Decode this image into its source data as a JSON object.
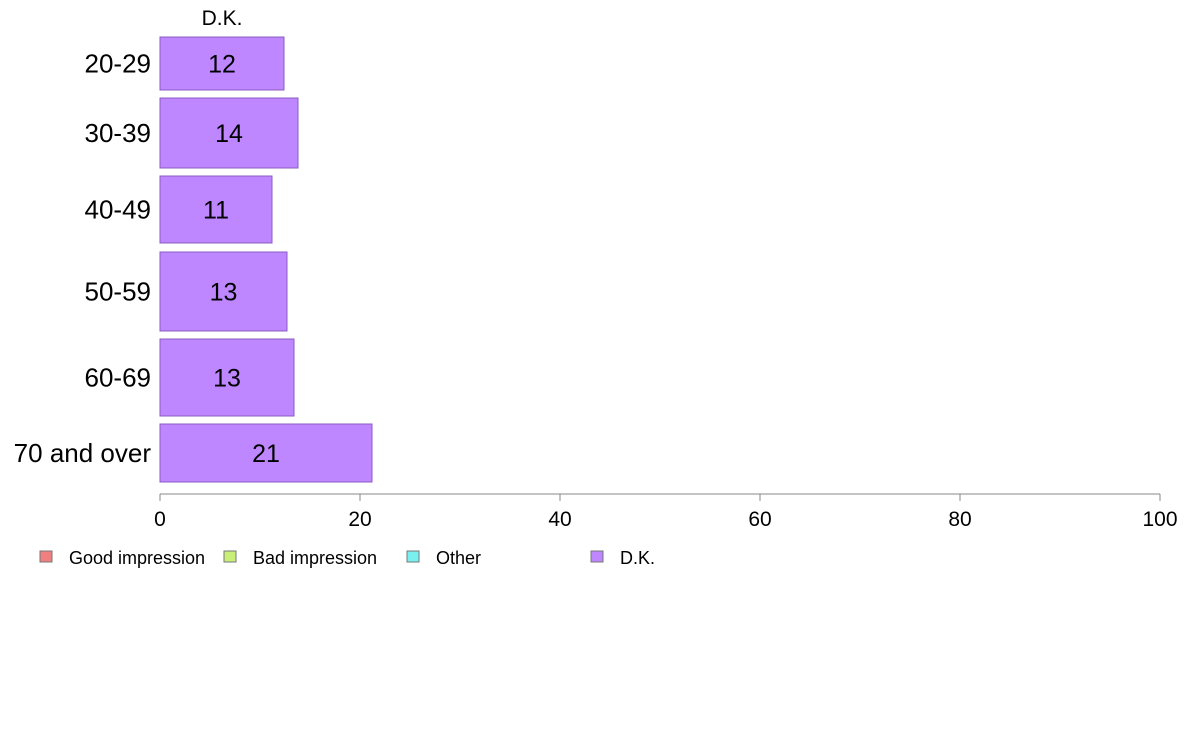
{
  "chart_data": {
    "type": "bar",
    "orientation": "horizontal",
    "stacked": true,
    "categories": [
      "20-29",
      "30-39",
      "40-49",
      "50-59",
      "60-69",
      "70 and over"
    ],
    "series": [
      {
        "name": "D.K.",
        "values": [
          12,
          14,
          11,
          13,
          13,
          21
        ]
      }
    ],
    "data_labels": [
      "12",
      "14",
      "11",
      "13",
      "13",
      "21"
    ],
    "exact_values": [
      12.4,
      13.8,
      11.2,
      12.7,
      13.4,
      21.2
    ],
    "top_label": "D.K.",
    "xlim": [
      0,
      100
    ],
    "xticks": [
      0,
      20,
      40,
      60,
      80,
      100
    ],
    "xtick_labels": [
      "0",
      "20",
      "40",
      "60",
      "80",
      "100"
    ],
    "legend": {
      "placement": "bottom-left",
      "items": [
        {
          "label": "Good impression",
          "color": "#f08080"
        },
        {
          "label": "Bad impression",
          "color": "#c8f078"
        },
        {
          "label": "Other",
          "color": "#78f0f0"
        },
        {
          "label": "D.K.",
          "color": "#bf87ff"
        }
      ]
    },
    "colors": {
      "bar_fill": "#bf87ff",
      "bar_stroke": "#8a5cc0",
      "axis": "#888888"
    }
  }
}
